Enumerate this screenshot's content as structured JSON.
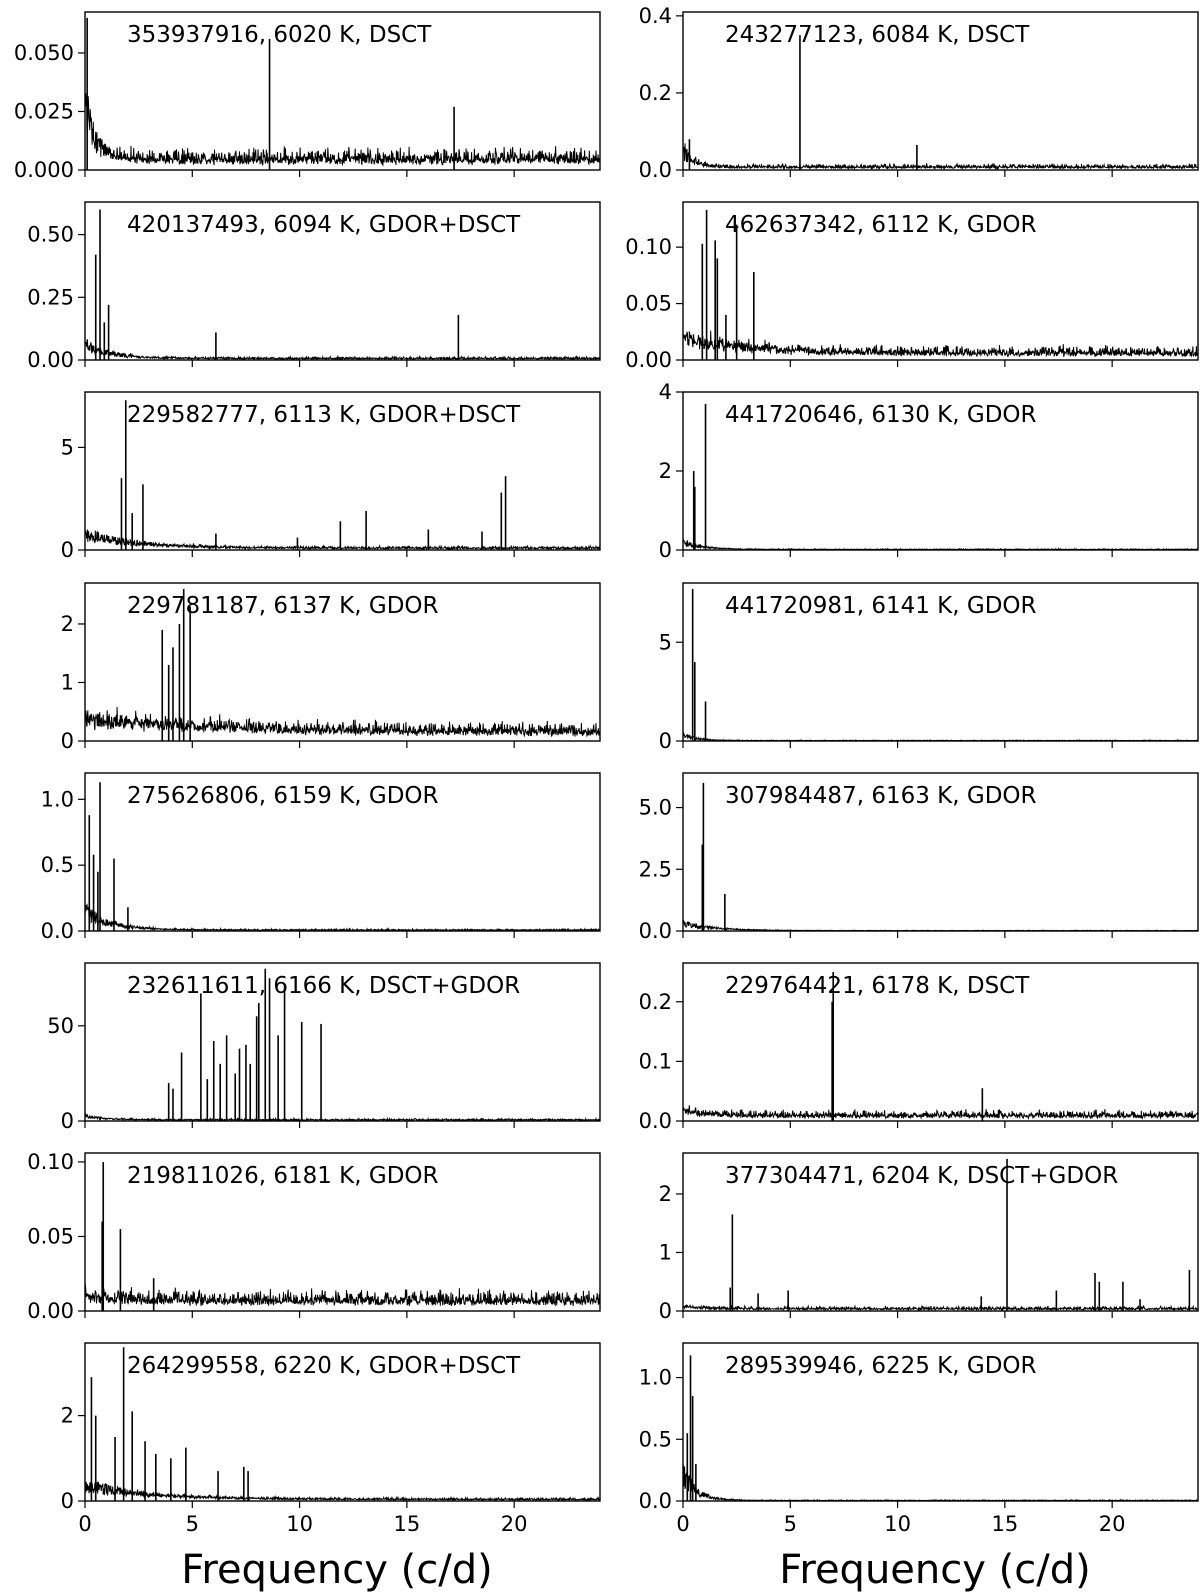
{
  "chart_data": {
    "type": "line",
    "xlabel": "Frequency (c/d)",
    "xlim": [
      0,
      24
    ],
    "xticks": [
      0,
      5,
      10,
      15,
      20
    ],
    "panels": [
      {
        "title": "353937916, 6020 K, DSCT",
        "ylim": [
          0,
          0.0675
        ],
        "yticks": [
          0.0,
          0.025,
          0.05
        ],
        "ytick_labels": [
          "0.000",
          "0.025",
          "0.050"
        ],
        "noise": 0.006,
        "low_freq": {
          "amp": 0.028,
          "width": 0.5
        },
        "peaks": [
          {
            "x": 0.1,
            "y": 0.065
          },
          {
            "x": 8.6,
            "y": 0.056
          },
          {
            "x": 17.2,
            "y": 0.027
          }
        ]
      },
      {
        "title": "243277123, 6084 K, DSCT",
        "ylim": [
          0,
          0.41
        ],
        "yticks": [
          0.0,
          0.2,
          0.4
        ],
        "ytick_labels": [
          "0.0",
          "0.2",
          "0.4"
        ],
        "noise": 0.01,
        "low_freq": {
          "amp": 0.05,
          "width": 0.5
        },
        "peaks": [
          {
            "x": 0.3,
            "y": 0.08
          },
          {
            "x": 5.45,
            "y": 0.35
          },
          {
            "x": 10.9,
            "y": 0.065
          }
        ]
      },
      {
        "title": "420137493, 6094 K, GDOR+DSCT",
        "ylim": [
          0,
          0.63
        ],
        "yticks": [
          0.0,
          0.25,
          0.5
        ],
        "ytick_labels": [
          "0.00",
          "0.25",
          "0.50"
        ],
        "noise": 0.008,
        "low_freq": {
          "amp": 0.06,
          "width": 1.2
        },
        "peaks": [
          {
            "x": 0.5,
            "y": 0.42
          },
          {
            "x": 0.7,
            "y": 0.6
          },
          {
            "x": 1.1,
            "y": 0.22
          },
          {
            "x": 0.9,
            "y": 0.15
          },
          {
            "x": 6.1,
            "y": 0.11
          },
          {
            "x": 17.4,
            "y": 0.18
          }
        ]
      },
      {
        "title": "462637342, 6112 K, GDOR",
        "ylim": [
          0,
          0.14
        ],
        "yticks": [
          0.0,
          0.05,
          0.1
        ],
        "ytick_labels": [
          "0.00",
          "0.05",
          "0.10"
        ],
        "noise": 0.008,
        "low_freq": {
          "amp": 0.015,
          "width": 3.0
        },
        "peaks": [
          {
            "x": 0.9,
            "y": 0.103
          },
          {
            "x": 1.1,
            "y": 0.133
          },
          {
            "x": 1.5,
            "y": 0.106
          },
          {
            "x": 1.6,
            "y": 0.09
          },
          {
            "x": 2.5,
            "y": 0.12
          },
          {
            "x": 3.3,
            "y": 0.078
          },
          {
            "x": 2.0,
            "y": 0.04
          }
        ]
      },
      {
        "title": "229582777, 6113 K, GDOR+DSCT",
        "ylim": [
          0,
          7.7
        ],
        "yticks": [
          0,
          5
        ],
        "ytick_labels": [
          "0",
          "5"
        ],
        "noise": 0.12,
        "low_freq": {
          "amp": 0.7,
          "width": 2.5
        },
        "peaks": [
          {
            "x": 1.7,
            "y": 3.5
          },
          {
            "x": 1.9,
            "y": 7.3
          },
          {
            "x": 2.2,
            "y": 1.8
          },
          {
            "x": 2.7,
            "y": 3.2
          },
          {
            "x": 6.1,
            "y": 0.8
          },
          {
            "x": 9.9,
            "y": 0.6
          },
          {
            "x": 11.9,
            "y": 1.4
          },
          {
            "x": 13.1,
            "y": 1.9
          },
          {
            "x": 16.0,
            "y": 1.0
          },
          {
            "x": 18.5,
            "y": 0.9
          },
          {
            "x": 19.4,
            "y": 2.8
          },
          {
            "x": 19.6,
            "y": 3.6
          }
        ]
      },
      {
        "title": "441720646, 6130 K, GDOR",
        "ylim": [
          0,
          4.0
        ],
        "yticks": [
          0,
          2,
          4
        ],
        "ytick_labels": [
          "0",
          "2",
          "4"
        ],
        "noise": 0.02,
        "low_freq": {
          "amp": 0.2,
          "width": 0.9
        },
        "peaks": [
          {
            "x": 0.5,
            "y": 2.0
          },
          {
            "x": 0.55,
            "y": 1.6
          },
          {
            "x": 1.05,
            "y": 3.7
          }
        ]
      },
      {
        "title": "229781187, 6137 K, GDOR",
        "ylim": [
          0,
          2.7
        ],
        "yticks": [
          0,
          1,
          2
        ],
        "ytick_labels": [
          "0",
          "1",
          "2"
        ],
        "noise": 0.2,
        "low_freq": {
          "amp": 0.25,
          "width": 6.0
        },
        "peaks": [
          {
            "x": 3.6,
            "y": 1.9
          },
          {
            "x": 4.1,
            "y": 1.6
          },
          {
            "x": 4.4,
            "y": 2.0
          },
          {
            "x": 4.6,
            "y": 2.6
          },
          {
            "x": 4.9,
            "y": 2.3
          },
          {
            "x": 3.9,
            "y": 1.3
          }
        ]
      },
      {
        "title": "441720981, 6141 K, GDOR",
        "ylim": [
          0,
          8.0
        ],
        "yticks": [
          0,
          5
        ],
        "ytick_labels": [
          "0",
          "5"
        ],
        "noise": 0.03,
        "low_freq": {
          "amp": 0.3,
          "width": 0.7
        },
        "peaks": [
          {
            "x": 0.45,
            "y": 7.7
          },
          {
            "x": 0.55,
            "y": 4.0
          },
          {
            "x": 1.05,
            "y": 2.0
          }
        ]
      },
      {
        "title": "275626806, 6159 K, GDOR",
        "ylim": [
          0,
          1.2
        ],
        "yticks": [
          0.0,
          0.5,
          1.0
        ],
        "ytick_labels": [
          "0.0",
          "0.5",
          "1.0"
        ],
        "noise": 0.01,
        "low_freq": {
          "amp": 0.15,
          "width": 1.2
        },
        "peaks": [
          {
            "x": 0.2,
            "y": 0.88
          },
          {
            "x": 0.4,
            "y": 0.58
          },
          {
            "x": 0.7,
            "y": 1.13
          },
          {
            "x": 0.6,
            "y": 0.45
          },
          {
            "x": 1.35,
            "y": 0.55
          },
          {
            "x": 2.0,
            "y": 0.18
          }
        ]
      },
      {
        "title": "307984487, 6163 K, GDOR",
        "ylim": [
          0,
          6.4
        ],
        "yticks": [
          0,
          2.5,
          5.0
        ],
        "ytick_labels": [
          "0.0",
          "2.5",
          "5.0"
        ],
        "noise": 0.02,
        "low_freq": {
          "amp": 0.3,
          "width": 1.5
        },
        "peaks": [
          {
            "x": 0.95,
            "y": 6.0
          },
          {
            "x": 0.9,
            "y": 3.5
          },
          {
            "x": 1.95,
            "y": 1.5
          }
        ]
      },
      {
        "title": "232611611, 6166 K, DSCT+GDOR",
        "ylim": [
          0,
          83
        ],
        "yticks": [
          0,
          50
        ],
        "ytick_labels": [
          "0",
          "50"
        ],
        "noise": 0.8,
        "low_freq": {
          "amp": 2.0,
          "width": 1.0
        },
        "peaks": [
          {
            "x": 3.9,
            "y": 20
          },
          {
            "x": 4.1,
            "y": 17
          },
          {
            "x": 4.5,
            "y": 36
          },
          {
            "x": 5.4,
            "y": 67
          },
          {
            "x": 5.7,
            "y": 22
          },
          {
            "x": 6.0,
            "y": 42
          },
          {
            "x": 6.3,
            "y": 30
          },
          {
            "x": 6.6,
            "y": 45
          },
          {
            "x": 7.0,
            "y": 25
          },
          {
            "x": 7.2,
            "y": 38
          },
          {
            "x": 7.5,
            "y": 40
          },
          {
            "x": 7.7,
            "y": 30
          },
          {
            "x": 8.0,
            "y": 55
          },
          {
            "x": 8.1,
            "y": 62
          },
          {
            "x": 8.4,
            "y": 80
          },
          {
            "x": 8.6,
            "y": 75
          },
          {
            "x": 9.0,
            "y": 45
          },
          {
            "x": 9.3,
            "y": 72
          },
          {
            "x": 10.1,
            "y": 52
          },
          {
            "x": 11.0,
            "y": 51
          }
        ]
      },
      {
        "title": "229764421, 6178 K, DSCT",
        "ylim": [
          0,
          0.265
        ],
        "yticks": [
          0.0,
          0.1,
          0.2
        ],
        "ytick_labels": [
          "0.0",
          "0.1",
          "0.2"
        ],
        "noise": 0.012,
        "low_freq": {
          "amp": 0.01,
          "width": 1.0
        },
        "peaks": [
          {
            "x": 7.0,
            "y": 0.25
          },
          {
            "x": 6.95,
            "y": 0.2
          },
          {
            "x": 13.95,
            "y": 0.055
          }
        ]
      },
      {
        "title": "219811026, 6181 K, GDOR",
        "ylim": [
          0,
          0.106
        ],
        "yticks": [
          0.0,
          0.05,
          0.1
        ],
        "ytick_labels": [
          "0.00",
          "0.05",
          "0.10"
        ],
        "noise": 0.009,
        "low_freq": {
          "amp": 0.004,
          "width": 1.5
        },
        "peaks": [
          {
            "x": 0.85,
            "y": 0.1
          },
          {
            "x": 0.8,
            "y": 0.06
          },
          {
            "x": 1.65,
            "y": 0.055
          },
          {
            "x": 3.2,
            "y": 0.022
          }
        ]
      },
      {
        "title": "377304471, 6204 K, DSCT+GDOR",
        "ylim": [
          0,
          2.7
        ],
        "yticks": [
          0,
          1,
          2
        ],
        "ytick_labels": [
          "0",
          "1",
          "2"
        ],
        "noise": 0.05,
        "low_freq": {
          "amp": 0.05,
          "width": 1.0
        },
        "peaks": [
          {
            "x": 2.3,
            "y": 1.65
          },
          {
            "x": 2.2,
            "y": 0.4
          },
          {
            "x": 3.5,
            "y": 0.3
          },
          {
            "x": 4.9,
            "y": 0.35
          },
          {
            "x": 13.9,
            "y": 0.25
          },
          {
            "x": 15.1,
            "y": 2.6
          },
          {
            "x": 17.4,
            "y": 0.35
          },
          {
            "x": 19.2,
            "y": 0.65
          },
          {
            "x": 19.4,
            "y": 0.5
          },
          {
            "x": 20.5,
            "y": 0.5
          },
          {
            "x": 21.3,
            "y": 0.2
          },
          {
            "x": 23.6,
            "y": 0.7
          }
        ]
      },
      {
        "title": "264299558, 6220 K, GDOR+DSCT",
        "ylim": [
          0,
          3.7
        ],
        "yticks": [
          0,
          2
        ],
        "ytick_labels": [
          "0",
          "2"
        ],
        "noise": 0.05,
        "low_freq": {
          "amp": 0.35,
          "width": 3.0
        },
        "peaks": [
          {
            "x": 0.3,
            "y": 2.9
          },
          {
            "x": 0.5,
            "y": 2.0
          },
          {
            "x": 1.4,
            "y": 1.5
          },
          {
            "x": 1.8,
            "y": 3.6
          },
          {
            "x": 2.2,
            "y": 2.1
          },
          {
            "x": 2.8,
            "y": 1.4
          },
          {
            "x": 3.3,
            "y": 1.1
          },
          {
            "x": 4.0,
            "y": 1.0
          },
          {
            "x": 4.7,
            "y": 1.25
          },
          {
            "x": 6.2,
            "y": 0.7
          },
          {
            "x": 7.4,
            "y": 0.8
          },
          {
            "x": 7.6,
            "y": 0.7
          }
        ]
      },
      {
        "title": "289539946, 6225 K, GDOR",
        "ylim": [
          0,
          1.28
        ],
        "yticks": [
          0.0,
          0.5,
          1.0
        ],
        "ytick_labels": [
          "0.0",
          "0.5",
          "1.0"
        ],
        "noise": 0.006,
        "low_freq": {
          "amp": 0.25,
          "width": 0.6
        },
        "peaks": [
          {
            "x": 0.2,
            "y": 0.55
          },
          {
            "x": 0.35,
            "y": 1.18
          },
          {
            "x": 0.45,
            "y": 0.85
          },
          {
            "x": 0.6,
            "y": 0.3
          }
        ]
      }
    ]
  }
}
